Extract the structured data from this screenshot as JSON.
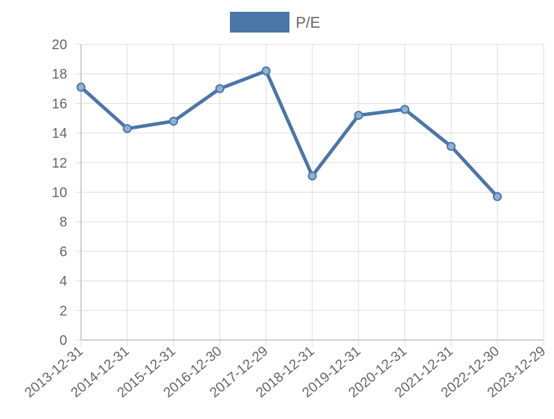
{
  "chart_data": {
    "type": "line",
    "x": [
      "2013-12-31",
      "2014-12-31",
      "2015-12-31",
      "2016-12-30",
      "2017-12-29",
      "2018-12-31",
      "2019-12-31",
      "2020-12-31",
      "2021-12-31",
      "2022-12-30",
      "2023-12-29"
    ],
    "series": [
      {
        "name": "P/E",
        "values": [
          17.1,
          14.3,
          14.8,
          17.0,
          18.2,
          11.1,
          15.2,
          15.6,
          13.1,
          9.7,
          null
        ]
      }
    ],
    "ylim": [
      0,
      20
    ],
    "yticks": [
      0,
      2,
      4,
      6,
      8,
      10,
      12,
      14,
      16,
      18,
      20
    ],
    "grid": true,
    "legend_position": "top",
    "colors": {
      "line": "#4a76a8",
      "point_fill": "#8fb0d6",
      "grid": "#dcdcdc",
      "axis": "#bdbdbd",
      "text": "#666666"
    }
  }
}
